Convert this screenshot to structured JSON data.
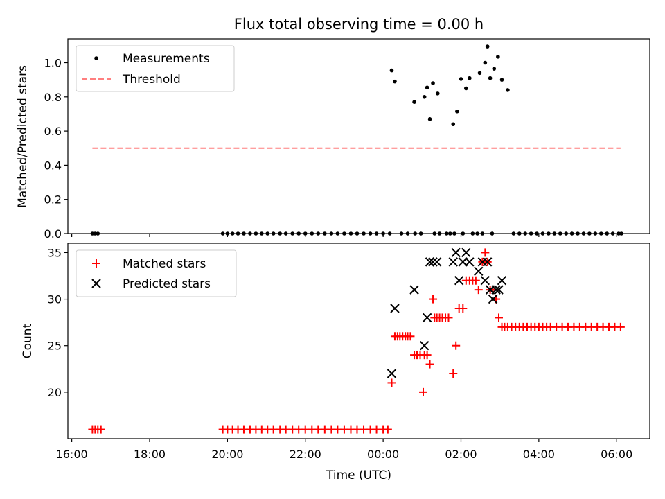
{
  "chart_data": [
    {
      "type": "scatter",
      "title": "Flux total observing time = 0.00 h",
      "xlabel": "",
      "ylabel": "Matched/Predicted stars",
      "x_unit": "hours since 16:00 UTC",
      "xlim": [
        -0.1,
        14.85
      ],
      "ylim": [
        0.0,
        1.14
      ],
      "yticks": [
        0.0,
        0.2,
        0.4,
        0.6,
        0.8,
        1.0
      ],
      "ytick_labels": [
        "0.0",
        "0.2",
        "0.4",
        "0.6",
        "0.8",
        "1.0"
      ],
      "xticks": [
        0,
        2,
        4,
        6,
        8,
        10,
        12,
        14
      ],
      "legend_position": "top-left",
      "series": [
        {
          "name": "Measurements",
          "marker": "dot",
          "color": "#000000",
          "x": [
            0.53,
            0.6,
            0.67,
            3.88,
            4.0,
            4.13,
            4.27,
            4.42,
            4.58,
            4.73,
            4.88,
            5.03,
            5.18,
            5.35,
            5.5,
            5.67,
            5.83,
            6.0,
            6.17,
            6.33,
            6.5,
            6.67,
            6.83,
            7.0,
            7.17,
            7.33,
            7.5,
            7.67,
            7.83,
            8.0,
            8.17,
            8.22,
            8.3,
            8.47,
            8.63,
            8.8,
            8.82,
            8.97,
            9.06,
            9.13,
            9.2,
            9.28,
            9.32,
            9.4,
            9.45,
            9.63,
            9.72,
            9.8,
            9.83,
            9.9,
            10.0,
            10.05,
            10.13,
            10.22,
            10.3,
            10.42,
            10.48,
            10.55,
            10.62,
            10.68,
            10.75,
            10.8,
            10.85,
            10.95,
            11.05,
            11.2,
            11.35,
            11.5,
            11.65,
            11.8,
            11.95,
            12.1,
            12.25,
            12.4,
            12.55,
            12.7,
            12.85,
            13.0,
            13.15,
            13.3,
            13.45,
            13.6,
            13.75,
            13.9,
            14.05,
            14.12
          ],
          "y": [
            0,
            0,
            0,
            0,
            0,
            0,
            0,
            0,
            0,
            0,
            0,
            0,
            0,
            0,
            0,
            0,
            0,
            0,
            0,
            0,
            0,
            0,
            0,
            0,
            0,
            0,
            0,
            0,
            0,
            0,
            0,
            0.955,
            0.89,
            0,
            0,
            0.77,
            0,
            0,
            0.8,
            0.855,
            0.67,
            0.88,
            0,
            0.82,
            0,
            0,
            0,
            0.64,
            0,
            0.715,
            0.905,
            0,
            0.85,
            0.91,
            0,
            0,
            0.94,
            0,
            1.0,
            1.095,
            0.91,
            0,
            0.965,
            1.035,
            0.9,
            0.84,
            0,
            0,
            0,
            0,
            0,
            0,
            0,
            0,
            0,
            0,
            0,
            0,
            0,
            0,
            0,
            0,
            0,
            0,
            0,
            0
          ]
        },
        {
          "name": "Threshold",
          "marker": "dashed-line",
          "color": "#ff7f7f",
          "x": [
            0.53,
            14.1
          ],
          "y": [
            0.5,
            0.5
          ]
        }
      ]
    },
    {
      "type": "scatter",
      "title": "",
      "xlabel": "Time (UTC)",
      "ylabel": "Count",
      "x_unit": "hours since 16:00 UTC",
      "xlim": [
        -0.1,
        14.85
      ],
      "ylim": [
        15.0,
        36.0
      ],
      "yticks": [
        20,
        25,
        30,
        35
      ],
      "ytick_labels": [
        "20",
        "25",
        "30",
        "35"
      ],
      "xticks": [
        0,
        2,
        4,
        6,
        8,
        10,
        12,
        14
      ],
      "xtick_labels": [
        "16:00",
        "18:00",
        "20:00",
        "22:00",
        "00:00",
        "02:00",
        "04:00",
        "06:00"
      ],
      "legend_position": "top-left",
      "series": [
        {
          "name": "Matched stars",
          "marker": "plus",
          "color": "#ff0000",
          "x": [
            0.53,
            0.6,
            0.67,
            0.75,
            3.88,
            4.0,
            4.13,
            4.27,
            4.42,
            4.58,
            4.73,
            4.88,
            5.03,
            5.18,
            5.35,
            5.5,
            5.67,
            5.83,
            6.0,
            6.17,
            6.33,
            6.5,
            6.67,
            6.83,
            7.0,
            7.17,
            7.33,
            7.5,
            7.67,
            7.83,
            8.0,
            8.12,
            8.22,
            8.3,
            8.37,
            8.43,
            8.5,
            8.57,
            8.63,
            8.7,
            8.8,
            8.87,
            8.95,
            9.03,
            9.06,
            9.13,
            9.2,
            9.28,
            9.32,
            9.38,
            9.45,
            9.52,
            9.6,
            9.68,
            9.8,
            9.87,
            9.95,
            10.05,
            10.13,
            10.22,
            10.3,
            10.38,
            10.45,
            10.55,
            10.62,
            10.68,
            10.75,
            10.82,
            10.9,
            10.97,
            11.05,
            11.12,
            11.2,
            11.3,
            11.4,
            11.5,
            11.6,
            11.7,
            11.8,
            11.9,
            12.0,
            12.1,
            12.2,
            12.3,
            12.45,
            12.6,
            12.75,
            12.9,
            13.05,
            13.2,
            13.35,
            13.5,
            13.65,
            13.8,
            13.95,
            14.1
          ],
          "y": [
            16,
            16,
            16,
            16,
            16,
            16,
            16,
            16,
            16,
            16,
            16,
            16,
            16,
            16,
            16,
            16,
            16,
            16,
            16,
            16,
            16,
            16,
            16,
            16,
            16,
            16,
            16,
            16,
            16,
            16,
            16,
            16,
            21,
            26,
            26,
            26,
            26,
            26,
            26,
            26,
            24,
            24,
            24,
            20,
            24,
            24,
            23,
            30,
            28,
            28,
            28,
            28,
            28,
            28,
            22,
            25,
            29,
            29,
            32,
            32,
            32,
            32,
            31,
            34,
            35,
            34,
            31,
            31,
            30,
            28,
            27,
            27,
            27,
            27,
            27,
            27,
            27,
            27,
            27,
            27,
            27,
            27,
            27,
            27,
            27,
            27,
            27,
            27,
            27,
            27,
            27,
            27,
            27,
            27,
            27,
            27
          ]
        },
        {
          "name": "Predicted stars",
          "marker": "x",
          "color": "#000000",
          "x": [
            8.22,
            8.3,
            8.8,
            9.06,
            9.13,
            9.2,
            9.28,
            9.38,
            9.8,
            9.87,
            9.95,
            10.05,
            10.13,
            10.22,
            10.45,
            10.55,
            10.62,
            10.68,
            10.75,
            10.82,
            10.9,
            10.97,
            11.05
          ],
          "y": [
            22,
            29,
            31,
            25,
            28,
            34,
            34,
            34,
            34,
            35,
            32,
            34,
            35,
            34,
            33,
            34,
            32,
            34,
            31,
            30,
            31,
            31,
            32
          ]
        }
      ]
    }
  ]
}
